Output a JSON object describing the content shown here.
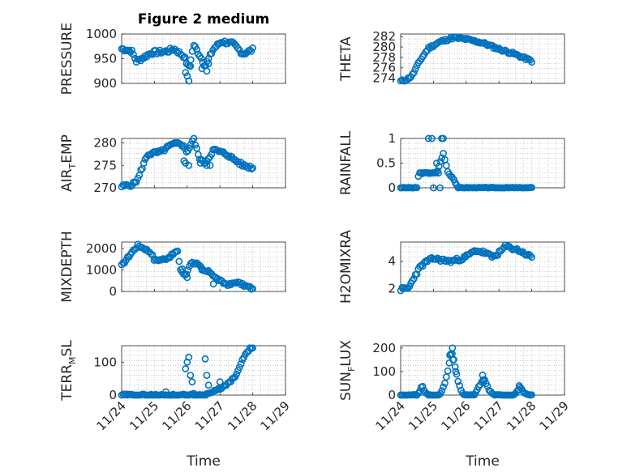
{
  "figure": {
    "title": "Figure 2 medium",
    "marker_color": "#0072BD",
    "grid_color": "#b0b0b0",
    "axis_color": "#262626",
    "x_ticks": [
      "11/24",
      "11/25",
      "11/26",
      "11/27",
      "11/28",
      "11/29"
    ],
    "x_label": "Time"
  },
  "chart_data": [
    {
      "type": "scatter",
      "id": "pressure",
      "title": "Figure 2 medium",
      "ylabel": "PRESSURE",
      "ylim": [
        900,
        1000
      ],
      "yticks": [
        900,
        950,
        1000
      ],
      "xlim": [
        0,
        5
      ],
      "grid": true,
      "series": [
        {
          "x": [],
          "y": []
        }
      ]
    },
    {
      "type": "scatter",
      "id": "theta",
      "ylabel": "THETA",
      "ylim": [
        273,
        282.5
      ],
      "yticks": [
        274,
        276,
        278,
        280,
        282
      ],
      "xlim": [
        0,
        5
      ],
      "grid": true,
      "series": [
        {
          "x": [],
          "y": []
        }
      ]
    },
    {
      "type": "scatter",
      "id": "airtemp",
      "ylabel": "AIR_TEMP",
      "ylabel_main": "AIR",
      "ylabel_sub": "T",
      "ylabel_rest": "EMP",
      "ylim": [
        270,
        281
      ],
      "yticks": [
        270,
        275,
        280
      ],
      "xlim": [
        0,
        5
      ],
      "grid": true,
      "series": [
        {
          "x": [],
          "y": []
        }
      ]
    },
    {
      "type": "scatter",
      "id": "rainfall",
      "ylabel": "RAINFALL",
      "ylim": [
        0,
        1
      ],
      "yticks": [
        0,
        0.5,
        1
      ],
      "xlim": [
        0,
        5
      ],
      "grid": true,
      "series": [
        {
          "x": [],
          "y": []
        }
      ]
    },
    {
      "type": "scatter",
      "id": "mixdepth",
      "ylabel": "MIXDEPTH",
      "ylim": [
        0,
        2300
      ],
      "yticks": [
        0,
        1000,
        2000
      ],
      "xlim": [
        0,
        5
      ],
      "grid": true,
      "series": [
        {
          "x": [],
          "y": []
        }
      ]
    },
    {
      "type": "scatter",
      "id": "h2omixra",
      "ylabel": "H2OMIXRA",
      "ylim": [
        1.8,
        5.4
      ],
      "yticks": [
        2,
        4
      ],
      "xlim": [
        0,
        5
      ],
      "grid": true,
      "series": [
        {
          "x": [],
          "y": []
        }
      ]
    },
    {
      "type": "scatter",
      "id": "terrmsl",
      "ylabel": "TERR_MSL",
      "ylabel_main": "TERR",
      "ylabel_sub": "M",
      "ylabel_rest": "SL",
      "ylim": [
        0,
        150
      ],
      "yticks": [
        0,
        100
      ],
      "xlim": [
        0,
        5
      ],
      "grid": true,
      "series": [
        {
          "x": [],
          "y": []
        }
      ]
    },
    {
      "type": "scatter",
      "id": "sunflux",
      "ylabel": "SUN_FLUX",
      "ylabel_main": "SUN",
      "ylabel_sub": "F",
      "ylabel_rest": "LUX",
      "ylim": [
        0,
        210
      ],
      "yticks": [
        0,
        100,
        200
      ],
      "xlim": [
        0,
        5
      ],
      "grid": true,
      "series": [
        {
          "x": [],
          "y": []
        }
      ]
    }
  ]
}
